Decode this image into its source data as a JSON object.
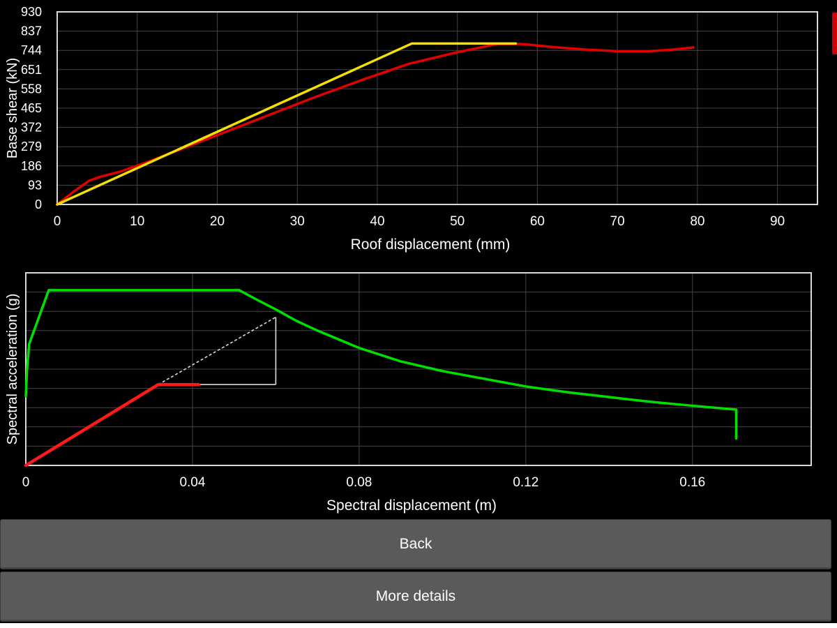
{
  "colors": {
    "background": "#000000",
    "grid": "#444444",
    "frame": "#d8d8d8",
    "capacity_curve": "#e00000",
    "bilinear_curve": "#f5e000",
    "demand_spectrum": "#00e000",
    "elastic_branch": "#ff1a1a",
    "construction_lines": "#dddddd",
    "button_bg": "#5a5a5a",
    "button_text": "#ffffff"
  },
  "chart_data": [
    {
      "type": "line",
      "title": "",
      "xlabel": "Roof displacement (mm)",
      "ylabel": "Base shear (kN)",
      "xlim": [
        0,
        95
      ],
      "ylim": [
        0,
        930
      ],
      "xticks": [
        0,
        10,
        20,
        30,
        40,
        50,
        60,
        70,
        80,
        90
      ],
      "yticks": [
        0,
        93,
        186,
        279,
        372,
        465,
        558,
        651,
        744,
        837,
        930
      ],
      "grid": true,
      "series": [
        {
          "color_key": "capacity_curve",
          "x": [
            0,
            2,
            4,
            5.5,
            8,
            12,
            18,
            25,
            32,
            38,
            44,
            50,
            55,
            58,
            62,
            66,
            70,
            74,
            77,
            79.5
          ],
          "y": [
            0,
            60,
            115,
            135,
            160,
            215,
            305,
            410,
            515,
            600,
            680,
            735,
            775,
            775,
            760,
            748,
            740,
            740,
            748,
            758
          ]
        },
        {
          "color_key": "bilinear_curve",
          "x": [
            0,
            44.3,
            57.3
          ],
          "y": [
            0,
            777,
            777
          ]
        }
      ]
    },
    {
      "type": "line",
      "title": "",
      "xlabel": "Spectral displacement (m)",
      "ylabel": "Spectral acceleration (g)",
      "xlim": [
        0,
        0.1885
      ],
      "ylim": [
        0,
        1.0
      ],
      "xticks": [
        0,
        0.04,
        0.08,
        0.12,
        0.16
      ],
      "xtick_labels": [
        "0",
        "0.04",
        "0.08",
        "0.12",
        "0.16"
      ],
      "y_gridlines": 10,
      "grid": true,
      "series": [
        {
          "color_key": "demand_spectrum",
          "x": [
            0,
            0.0003,
            0.0008,
            0.0055,
            0.0512,
            0.0555,
            0.06,
            0.065,
            0.07,
            0.08,
            0.09,
            0.1,
            0.11,
            0.12,
            0.13,
            0.14,
            0.15,
            0.16,
            0.1705,
            0.1705
          ],
          "y": [
            0.36,
            0.5,
            0.63,
            0.91,
            0.91,
            0.86,
            0.81,
            0.75,
            0.7,
            0.61,
            0.54,
            0.49,
            0.45,
            0.41,
            0.38,
            0.355,
            0.33,
            0.31,
            0.29,
            0.14
          ]
        },
        {
          "color_key": "elastic_branch",
          "x": [
            0,
            0.0318
          ],
          "y": [
            0,
            0.42
          ]
        },
        {
          "color_key": "elastic_branch",
          "x": [
            0.0318,
            0.0415
          ],
          "y": [
            0.42,
            0.42
          ]
        }
      ],
      "construction_lines": [
        {
          "style": "dashed",
          "x": [
            0.0318,
            0.06
          ],
          "y": [
            0.42,
            0.77
          ]
        },
        {
          "style": "solid",
          "x": [
            0.0415,
            0.06
          ],
          "y": [
            0.42,
            0.42
          ]
        },
        {
          "style": "solid",
          "x": [
            0.06,
            0.06
          ],
          "y": [
            0.42,
            0.77
          ]
        }
      ]
    }
  ],
  "buttons": {
    "back_label": "Back",
    "more_details_label": "More details"
  }
}
